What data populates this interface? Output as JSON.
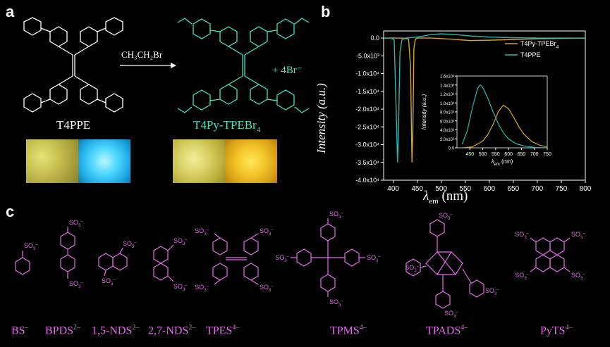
{
  "panels": {
    "a": "a",
    "b": "b",
    "c": "c"
  },
  "panel_a": {
    "reagent": "CH₃CH₂Br",
    "reactant_name": "T4PPE",
    "product_name": "T4Py-TPEBr",
    "product_sub": "4",
    "counter_ion": "+ 4Br⁻",
    "colors": {
      "reactant": "#ffffff",
      "product": "#3fe6c6"
    }
  },
  "panel_b": {
    "ylabel": "Intensity",
    "ylabel_unit": "(a.u.)",
    "xlabel": "λ",
    "xlabel_sub": "em",
    "xlabel_unit": "(nm)",
    "inset_ylabel": "Intensity",
    "inset_ylabel_unit": "(a.u.)",
    "inset_xlabel": "λ",
    "inset_xlabel_sub": "em",
    "inset_xlabel_unit": "(nm)"
  },
  "chart_data": [
    {
      "type": "line",
      "xlim": [
        380,
        800
      ],
      "ylim": [
        -40000,
        2000
      ],
      "x_ticks": [
        400,
        450,
        500,
        550,
        600,
        650,
        700,
        750,
        800
      ],
      "y_ticks": [
        "0.0",
        "-5.0x10³",
        "-1.0x10⁴",
        "-1.5x10⁴",
        "-2.0x10⁴",
        "-2.5x10⁴",
        "-3.0x10⁴",
        "-3.5x10⁴",
        "-4.0x10⁴"
      ],
      "y_tick_values": [
        0,
        -5000,
        -10000,
        -15000,
        -20000,
        -25000,
        -30000,
        -35000,
        -40000
      ],
      "legend_position": "top-right",
      "series": [
        {
          "name": "T4Py-TPEBr",
          "name_sub": "4",
          "color": "#d4a62a",
          "x": [
            380,
            400,
            420,
            432,
            436,
            439,
            441,
            443,
            446,
            450,
            480,
            520,
            560,
            600,
            650,
            700,
            750,
            800
          ],
          "y": [
            0,
            0,
            0,
            -300,
            -8000,
            -35000,
            -25000,
            -3000,
            -300,
            0,
            0,
            -300,
            -700,
            -600,
            -400,
            -200,
            -100,
            0
          ]
        },
        {
          "name": "T4PPE",
          "name_sub": "",
          "color": "#2bb7b0",
          "x": [
            380,
            395,
            402,
            406,
            409,
            411,
            414,
            418,
            425,
            450,
            480,
            500,
            530,
            560,
            600,
            650,
            700,
            750,
            800
          ],
          "y": [
            0,
            0,
            -500,
            -20000,
            -35000,
            -26000,
            -4000,
            -500,
            0,
            300,
            1000,
            1200,
            1000,
            600,
            300,
            100,
            0,
            0,
            0
          ]
        }
      ]
    },
    {
      "type": "line",
      "xlim": [
        400,
        750
      ],
      "ylim": [
        0,
        1600
      ],
      "x_ticks": [
        450,
        500,
        550,
        600,
        650,
        700,
        750
      ],
      "y_ticks": [
        "0.0",
        "2.0x10²",
        "4.0x10²",
        "6.0x10²",
        "8.0x10²",
        "1.0x10³",
        "1.2x10³",
        "1.4x10³",
        "1.6x10³"
      ],
      "y_tick_values": [
        0,
        200,
        400,
        600,
        800,
        1000,
        1200,
        1400,
        1600
      ],
      "series": [
        {
          "color": "#2bb7b0",
          "x": [
            420,
            440,
            460,
            480,
            490,
            500,
            520,
            540,
            560,
            580,
            600,
            630,
            660,
            700,
            750
          ],
          "y": [
            80,
            380,
            900,
            1330,
            1400,
            1350,
            1100,
            800,
            540,
            330,
            200,
            90,
            40,
            10,
            0
          ]
        },
        {
          "color": "#d4a62a",
          "x": [
            420,
            460,
            500,
            520,
            540,
            560,
            570,
            580,
            600,
            620,
            640,
            660,
            690,
            720,
            750
          ],
          "y": [
            0,
            20,
            150,
            300,
            520,
            800,
            880,
            950,
            870,
            680,
            470,
            300,
            140,
            60,
            20
          ]
        }
      ]
    }
  ],
  "panel_c": {
    "compounds": [
      {
        "base": "BS",
        "charge": "–"
      },
      {
        "base": "BPDS",
        "charge": "2–"
      },
      {
        "base": "1,5-NDS",
        "charge": "2–"
      },
      {
        "base": "2,7-NDS",
        "charge": "2–"
      },
      {
        "base": "TPES",
        "charge": "4–"
      },
      {
        "base": "TPMS",
        "charge": "4–"
      },
      {
        "base": "TPADS",
        "charge": "4–"
      },
      {
        "base": "PyTS",
        "charge": "4–"
      }
    ],
    "group_main": "SO",
    "group_sub": "3",
    "group_sup": "–",
    "color": "#e76bea"
  }
}
